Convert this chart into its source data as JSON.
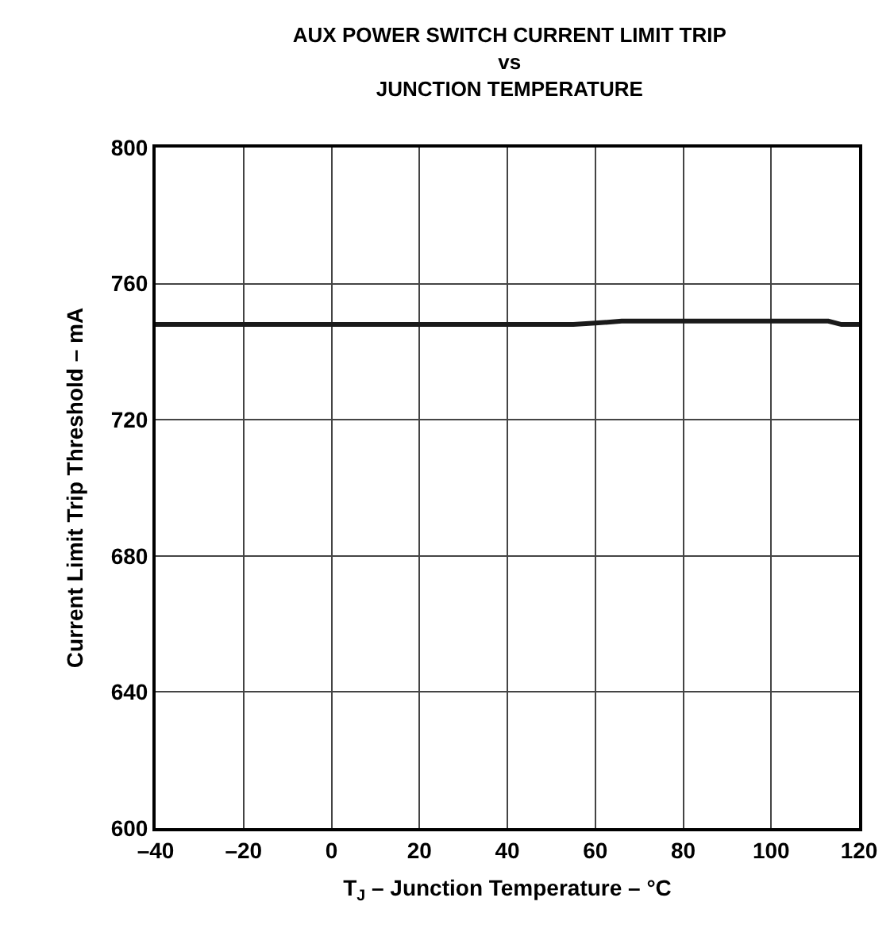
{
  "chart_data": {
    "type": "line",
    "title": "AUX POWER SWITCH CURRENT LIMIT TRIP\nvs\nJUNCTION TEMPERATURE",
    "xlabel": "T$_{J}$ – Junction Temperature – °C",
    "ylabel": "Current Limit Trip Threshold – mA",
    "x": [
      -40,
      0,
      40,
      55,
      60,
      66,
      80,
      100,
      113,
      116,
      120
    ],
    "series": [
      {
        "color": "#1a1a1a",
        "values": [
          748,
          748,
          748,
          748,
          748.4,
          749,
          749,
          749,
          749,
          748,
          748
        ]
      }
    ],
    "xlim": [
      -40,
      120
    ],
    "xticks": [
      {
        "value": -40,
        "label": "–40"
      },
      {
        "value": -20,
        "label": "–20"
      },
      0,
      20,
      40,
      60,
      80,
      100,
      120
    ],
    "ylim": [
      600,
      800
    ],
    "yticks": [
      600,
      640,
      680,
      720,
      760,
      800
    ],
    "grid": true,
    "marker": "none",
    "line_style": "solid"
  }
}
